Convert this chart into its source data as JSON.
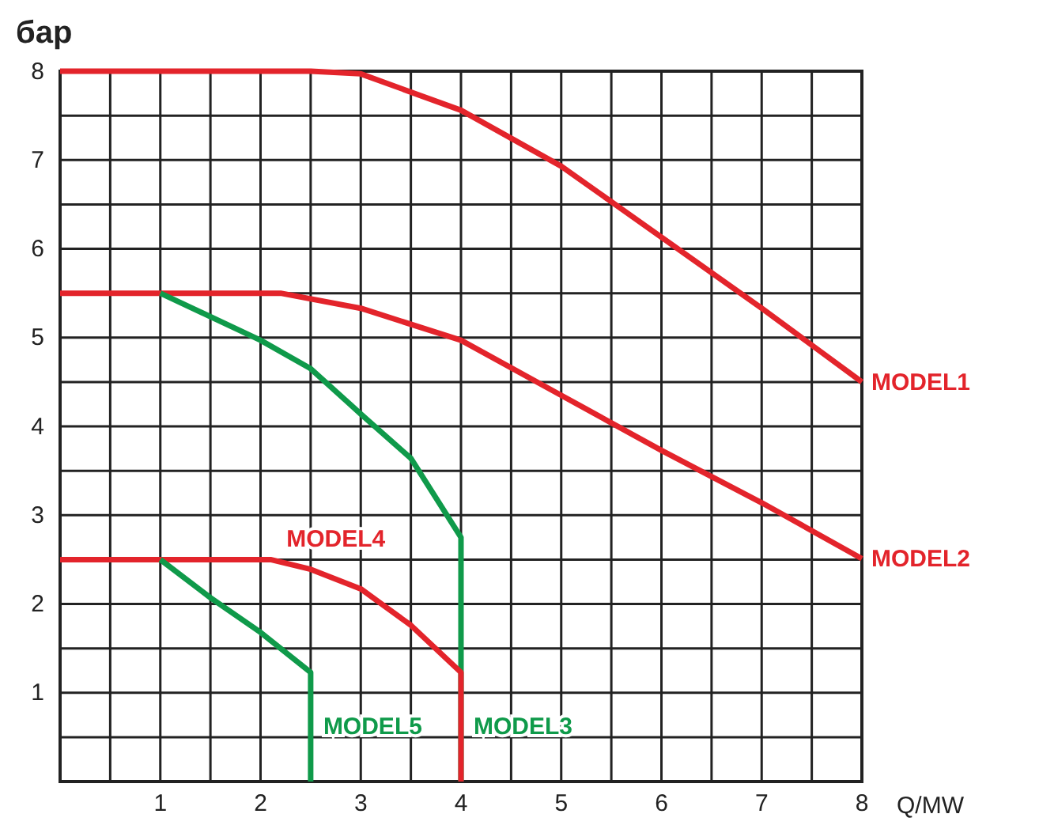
{
  "chart_data": {
    "type": "line",
    "xlabel": "Q/MW",
    "ylabel": "бар",
    "xlim": [
      0,
      8
    ],
    "ylim": [
      0,
      8
    ],
    "xticks": [
      {
        "value": 0.5,
        "label": null
      },
      1,
      {
        "value": 1.5,
        "label": null
      },
      2,
      {
        "value": 2.5,
        "label": null
      },
      3,
      {
        "value": 3.5,
        "label": null
      },
      4,
      {
        "value": 4.5,
        "label": null
      },
      5,
      {
        "value": 5.5,
        "label": null
      },
      6,
      {
        "value": 6.5,
        "label": null
      },
      7,
      {
        "value": 7.5,
        "label": null
      },
      8
    ],
    "yticks": [
      {
        "value": 0.5,
        "label": null
      },
      1,
      {
        "value": 1.5,
        "label": null
      },
      2,
      {
        "value": 2.5,
        "label": null
      },
      3,
      {
        "value": 3.5,
        "label": null
      },
      4,
      {
        "value": 4.5,
        "label": null
      },
      5,
      {
        "value": 5.5,
        "label": null
      },
      6,
      {
        "value": 6.5,
        "label": null
      },
      7,
      {
        "value": 7.5,
        "label": null
      },
      8
    ],
    "grid": true,
    "marker": "none",
    "line_style": "solid",
    "series": [
      {
        "name": "MODEL1",
        "color": "#e3242b",
        "x": [
          0,
          2.5,
          3,
          4,
          5,
          6,
          7,
          8
        ],
        "values": [
          8,
          8,
          7.97,
          7.56,
          6.93,
          6.13,
          5.33,
          4.5
        ]
      },
      {
        "name": "MODEL2",
        "color": "#e3242b",
        "x": [
          0,
          2.2,
          3,
          4,
          5,
          6,
          7,
          8
        ],
        "values": [
          5.5,
          5.5,
          5.33,
          4.97,
          4.35,
          3.73,
          3.14,
          2.51
        ]
      },
      {
        "name": "MODEL3",
        "color": "#0f9a4a",
        "x": [
          1,
          2,
          2.5,
          3,
          3.5,
          4,
          4
        ],
        "values": [
          5.5,
          4.97,
          4.65,
          4.14,
          3.64,
          2.75,
          0
        ]
      },
      {
        "name": "MODEL4",
        "color": "#e3242b",
        "x": [
          0,
          2.1,
          2.5,
          3,
          3.5,
          4,
          4
        ],
        "values": [
          2.5,
          2.5,
          2.39,
          2.17,
          1.76,
          1.23,
          0
        ]
      },
      {
        "name": "MODEL5",
        "color": "#0f9a4a",
        "x": [
          1,
          1.5,
          2,
          2.5,
          2.5
        ],
        "values": [
          2.5,
          2.07,
          1.68,
          1.23,
          0
        ]
      }
    ]
  }
}
